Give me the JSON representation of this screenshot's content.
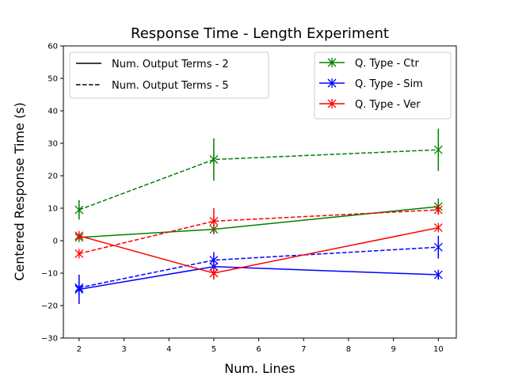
{
  "chart_data": {
    "type": "line",
    "title": "Response Time - Length Experiment",
    "xlabel": "Num. Lines",
    "ylabel": "Centered Response Time (s)",
    "xlim": [
      1.65,
      10.4
    ],
    "ylim": [
      -30,
      60
    ],
    "xticks": [
      2,
      3,
      4,
      5,
      6,
      7,
      8,
      9,
      10
    ],
    "yticks": [
      -30,
      -20,
      -10,
      0,
      10,
      20,
      30,
      40,
      50,
      60
    ],
    "x": [
      2,
      5,
      10
    ],
    "colors": {
      "Ctr": "#008000",
      "Sim": "#0000ff",
      "Ver": "#ff0000"
    },
    "series": [
      {
        "name": "Ctr - 5 terms",
        "qtype": "Ctr",
        "terms": 5,
        "style": "dashed",
        "values": [
          9.5,
          25,
          28
        ],
        "errors": [
          3,
          6.5,
          6.5
        ]
      },
      {
        "name": "Ctr - 2 terms",
        "qtype": "Ctr",
        "terms": 2,
        "style": "solid",
        "values": [
          1,
          3.5,
          10.5
        ],
        "errors": [
          0,
          0,
          2.5
        ]
      },
      {
        "name": "Sim - 5 terms",
        "qtype": "Sim",
        "terms": 5,
        "style": "dashed",
        "values": [
          -14.5,
          -6,
          -2
        ],
        "errors": [
          0,
          2.5,
          3.5
        ]
      },
      {
        "name": "Sim - 2 terms",
        "qtype": "Sim",
        "terms": 2,
        "style": "solid",
        "values": [
          -15,
          -8,
          -10.5
        ],
        "errors": [
          4.5,
          0,
          1.5
        ]
      },
      {
        "name": "Ver - 5 terms",
        "qtype": "Ver",
        "terms": 5,
        "style": "dashed",
        "values": [
          -4,
          6,
          9.5
        ],
        "errors": [
          0,
          4,
          1.5
        ]
      },
      {
        "name": "Ver - 2 terms",
        "qtype": "Ver",
        "terms": 2,
        "style": "solid",
        "values": [
          1.5,
          -10,
          4
        ],
        "errors": [
          0,
          2,
          0
        ]
      }
    ],
    "legend_style": {
      "position": "top-left",
      "entries": [
        {
          "label": "Num. Output Terms - 2",
          "style": "solid"
        },
        {
          "label": "Num. Output Terms - 5",
          "style": "dashed"
        }
      ]
    },
    "legend_qtype": {
      "position": "top-right",
      "entries": [
        {
          "label": "Q. Type - Ctr",
          "qtype": "Ctr"
        },
        {
          "label": "Q. Type - Sim",
          "qtype": "Sim"
        },
        {
          "label": "Q. Type - Ver",
          "qtype": "Ver"
        }
      ]
    }
  }
}
